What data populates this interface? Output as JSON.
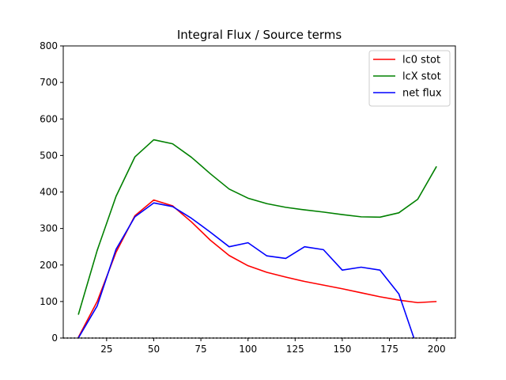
{
  "chart_data": {
    "type": "line",
    "title": "Integral Flux / Source terms",
    "xlabel": "",
    "ylabel": "",
    "xlim": [
      2,
      210
    ],
    "ylim": [
      0,
      800
    ],
    "xticks": [
      25,
      50,
      75,
      100,
      125,
      150,
      175,
      200
    ],
    "yticks": [
      0,
      100,
      200,
      300,
      400,
      500,
      600,
      700,
      800
    ],
    "grid": false,
    "legend_position": "top-right",
    "zero_line": {
      "y": 0,
      "style": "dotted",
      "color": "#000000"
    },
    "series": [
      {
        "name": "lc0 stot",
        "color": "#ff0000",
        "x": [
          10,
          20,
          30,
          40,
          50,
          60,
          70,
          80,
          90,
          100,
          110,
          120,
          130,
          140,
          150,
          160,
          170,
          180,
          190,
          200
        ],
        "y": [
          2,
          100,
          235,
          335,
          378,
          362,
          318,
          268,
          226,
          198,
          180,
          167,
          155,
          145,
          135,
          124,
          113,
          104,
          97,
          100
        ]
      },
      {
        "name": "lcX stot",
        "color": "#008000",
        "x": [
          10,
          20,
          30,
          40,
          50,
          60,
          70,
          80,
          90,
          100,
          110,
          120,
          130,
          140,
          150,
          160,
          170,
          180,
          190,
          200
        ],
        "y": [
          64,
          240,
          388,
          496,
          543,
          532,
          495,
          450,
          408,
          383,
          368,
          358,
          351,
          345,
          338,
          332,
          331,
          343,
          380,
          470
        ]
      },
      {
        "name": "net flux",
        "color": "#0000ff",
        "x": [
          10,
          20,
          30,
          40,
          50,
          60,
          70,
          80,
          90,
          100,
          110,
          120,
          130,
          140,
          150,
          160,
          170,
          180,
          188
        ],
        "y": [
          0,
          88,
          243,
          332,
          370,
          360,
          328,
          290,
          250,
          261,
          225,
          218,
          250,
          242,
          186,
          194,
          186,
          121,
          0
        ]
      }
    ]
  }
}
